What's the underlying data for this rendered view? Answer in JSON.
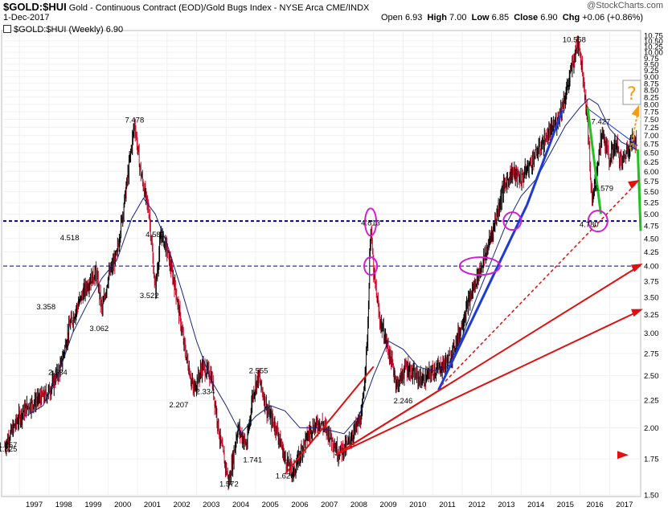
{
  "header": {
    "symbol": "$GOLD:$HUI",
    "description": "Gold - Continuous Contract (EOD)/Gold Bugs Index - NYSE Arca",
    "exchange": "CME/INDX",
    "date": "1-Dec-2017",
    "legend": "$GOLD:$HUI (Weekly) 6.90",
    "brand": "@StockCharts.com",
    "ohlc": {
      "open_label": "Open",
      "open": "6.93",
      "high_label": "High",
      "high": "7.00",
      "low_label": "Low",
      "low": "6.85",
      "close_label": "Close",
      "close": "6.90",
      "chg_label": "Chg",
      "chg": "+0.06 (+0.86%)"
    },
    "question_mark": "?"
  },
  "colors": {
    "up_bar": "#000000",
    "down_bar": "#c8102e",
    "ma": "#1a237e",
    "dashed_level": "#00008b",
    "blue_trend": "#1e3ad6",
    "red_trend": "#e01010",
    "green_line": "#22c022",
    "circle": "#d020d0",
    "orange": "#f39c12"
  },
  "chart_data": {
    "type": "line",
    "title": "$GOLD:$HUI (Weekly)",
    "xlabel": "",
    "ylabel": "",
    "ylim": [
      1.5,
      10.9
    ],
    "y_scale": "log",
    "y_ticks": [
      "1.50",
      "1.75",
      "2.00",
      "2.25",
      "2.50",
      "2.75",
      "3.00",
      "3.25",
      "3.50",
      "3.75",
      "4.00",
      "4.25",
      "4.50",
      "4.75",
      "5.00",
      "5.25",
      "5.50",
      "5.75",
      "6.00",
      "6.25",
      "6.50",
      "6.75",
      "7.00",
      "7.25",
      "7.50",
      "7.75",
      "8.00",
      "8.25",
      "8.50",
      "8.75",
      "9.00",
      "9.25",
      "9.50",
      "9.75",
      "10.00",
      "10.25",
      "10.50",
      "10.75"
    ],
    "x_ticks": [
      "1997",
      "1998",
      "1999",
      "2000",
      "2001",
      "2002",
      "2003",
      "2004",
      "2005",
      "2006",
      "2007",
      "2008",
      "2009",
      "2010",
      "2011",
      "2012",
      "2013",
      "2014",
      "2015",
      "2016",
      "2017"
    ],
    "price_path": [
      [
        1996.5,
        1.85
      ],
      [
        1996.8,
        2.0
      ],
      [
        1997.0,
        2.1
      ],
      [
        1997.3,
        2.2
      ],
      [
        1997.6,
        2.25
      ],
      [
        1997.9,
        2.3
      ],
      [
        1998.1,
        2.4
      ],
      [
        1998.4,
        2.6
      ],
      [
        1998.7,
        3.1
      ],
      [
        1999.0,
        3.4
      ],
      [
        1999.3,
        3.7
      ],
      [
        1999.6,
        3.9
      ],
      [
        1999.8,
        3.3
      ],
      [
        2000.0,
        3.8
      ],
      [
        2000.3,
        4.2
      ],
      [
        2000.6,
        5.5
      ],
      [
        2000.9,
        7.4
      ],
      [
        2001.1,
        6.0
      ],
      [
        2001.4,
        5.0
      ],
      [
        2001.6,
        3.6
      ],
      [
        2001.8,
        4.6
      ],
      [
        2002.0,
        4.3
      ],
      [
        2002.3,
        3.6
      ],
      [
        2002.6,
        2.8
      ],
      [
        2002.9,
        2.35
      ],
      [
        2003.2,
        2.6
      ],
      [
        2003.5,
        2.5
      ],
      [
        2003.8,
        1.9
      ],
      [
        2004.1,
        1.58
      ],
      [
        2004.4,
        2.0
      ],
      [
        2004.7,
        1.85
      ],
      [
        2004.9,
        2.3
      ],
      [
        2005.1,
        2.5
      ],
      [
        2005.4,
        2.15
      ],
      [
        2005.7,
        2.0
      ],
      [
        2006.0,
        1.75
      ],
      [
        2006.3,
        1.65
      ],
      [
        2006.6,
        1.85
      ],
      [
        2006.9,
        2.0
      ],
      [
        2007.2,
        2.05
      ],
      [
        2007.5,
        1.95
      ],
      [
        2007.8,
        1.8
      ],
      [
        2008.1,
        1.85
      ],
      [
        2008.4,
        2.0
      ],
      [
        2008.6,
        2.1
      ],
      [
        2008.8,
        3.0
      ],
      [
        2008.9,
        4.8
      ],
      [
        2009.0,
        3.9
      ],
      [
        2009.2,
        3.2
      ],
      [
        2009.5,
        2.8
      ],
      [
        2009.8,
        2.4
      ],
      [
        2010.1,
        2.6
      ],
      [
        2010.4,
        2.5
      ],
      [
        2010.7,
        2.45
      ],
      [
        2011.0,
        2.55
      ],
      [
        2011.3,
        2.6
      ],
      [
        2011.6,
        2.7
      ],
      [
        2011.9,
        3.0
      ],
      [
        2012.2,
        3.4
      ],
      [
        2012.5,
        3.8
      ],
      [
        2012.8,
        4.2
      ],
      [
        2013.1,
        4.8
      ],
      [
        2013.4,
        5.6
      ],
      [
        2013.7,
        6.0
      ],
      [
        2014.0,
        5.8
      ],
      [
        2014.3,
        6.2
      ],
      [
        2014.6,
        6.6
      ],
      [
        2014.9,
        7.0
      ],
      [
        2015.2,
        7.4
      ],
      [
        2015.5,
        8.3
      ],
      [
        2015.8,
        9.8
      ],
      [
        2015.95,
        10.55
      ],
      [
        2016.1,
        9.0
      ],
      [
        2016.25,
        7.5
      ],
      [
        2016.4,
        5.2
      ],
      [
        2016.55,
        6.0
      ],
      [
        2016.75,
        7.1
      ],
      [
        2017.0,
        6.3
      ],
      [
        2017.2,
        6.8
      ],
      [
        2017.4,
        6.2
      ],
      [
        2017.6,
        6.6
      ],
      [
        2017.8,
        6.9
      ],
      [
        2017.92,
        6.9
      ]
    ],
    "ma_path": [
      [
        1997.2,
        2.1
      ],
      [
        1997.8,
        2.2
      ],
      [
        1998.3,
        2.5
      ],
      [
        1998.8,
        3.0
      ],
      [
        1999.3,
        3.4
      ],
      [
        1999.8,
        3.8
      ],
      [
        2000.3,
        4.1
      ],
      [
        2000.8,
        4.9
      ],
      [
        2001.2,
        5.35
      ],
      [
        2001.6,
        5.0
      ],
      [
        2002.0,
        4.4
      ],
      [
        2002.5,
        3.6
      ],
      [
        2003.0,
        2.9
      ],
      [
        2003.5,
        2.45
      ],
      [
        2004.0,
        2.2
      ],
      [
        2004.5,
        1.95
      ],
      [
        2005.0,
        2.1
      ],
      [
        2005.5,
        2.2
      ],
      [
        2006.0,
        2.15
      ],
      [
        2006.5,
        2.0
      ],
      [
        2007.0,
        2.0
      ],
      [
        2007.5,
        1.98
      ],
      [
        2008.0,
        1.95
      ],
      [
        2008.5,
        2.1
      ],
      [
        2009.0,
        2.5
      ],
      [
        2009.5,
        2.9
      ],
      [
        2010.0,
        2.8
      ],
      [
        2010.5,
        2.6
      ],
      [
        2011.0,
        2.55
      ],
      [
        2011.5,
        2.6
      ],
      [
        2012.0,
        2.95
      ],
      [
        2012.5,
        3.5
      ],
      [
        2013.0,
        4.1
      ],
      [
        2013.5,
        4.8
      ],
      [
        2014.0,
        5.4
      ],
      [
        2014.5,
        5.8
      ],
      [
        2015.0,
        6.5
      ],
      [
        2015.5,
        7.3
      ],
      [
        2016.0,
        7.9
      ],
      [
        2016.3,
        8.2
      ],
      [
        2016.6,
        8.0
      ],
      [
        2017.0,
        7.2
      ],
      [
        2017.4,
        6.8
      ],
      [
        2017.9,
        6.6
      ]
    ],
    "horizontal_levels": [
      4.85,
      4.0
    ],
    "annotations": [
      {
        "label": "1.857",
        "x": 1996.6,
        "y": 1.857
      },
      {
        "label": "1.825",
        "x": 1996.6,
        "y": 1.825
      },
      {
        "label": "2.534",
        "x": 1998.3,
        "y": 2.534
      },
      {
        "label": "3.358",
        "x": 1997.9,
        "y": 3.358
      },
      {
        "label": "4.518",
        "x": 1998.7,
        "y": 4.518
      },
      {
        "label": "3.062",
        "x": 1999.7,
        "y": 3.062
      },
      {
        "label": "7.478",
        "x": 2000.9,
        "y": 7.478
      },
      {
        "label": "4.581",
        "x": 2001.6,
        "y": 4.581
      },
      {
        "label": "3.522",
        "x": 2001.4,
        "y": 3.522
      },
      {
        "label": "2.207",
        "x": 2002.4,
        "y": 2.207
      },
      {
        "label": "2.334",
        "x": 2003.3,
        "y": 2.334
      },
      {
        "label": "1.572",
        "x": 2004.1,
        "y": 1.572
      },
      {
        "label": "1.741",
        "x": 2004.9,
        "y": 1.741
      },
      {
        "label": "2.555",
        "x": 2005.1,
        "y": 2.555
      },
      {
        "label": "1.626",
        "x": 2006.0,
        "y": 1.626
      },
      {
        "label": "4.813",
        "x": 2008.9,
        "y": 4.813
      },
      {
        "label": "2.246",
        "x": 2010.0,
        "y": 2.246
      },
      {
        "label": "10.558",
        "x": 2015.8,
        "y": 10.558
      },
      {
        "label": "7.427",
        "x": 2016.7,
        "y": 7.427
      },
      {
        "label": "5.579",
        "x": 2016.8,
        "y": 5.579
      },
      {
        "label": "4.780",
        "x": 2016.3,
        "y": 4.78
      }
    ]
  }
}
